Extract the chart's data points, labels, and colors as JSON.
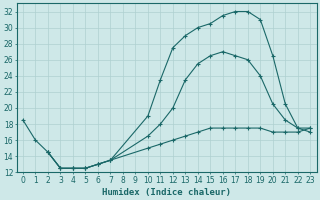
{
  "xlabel": "Humidex (Indice chaleur)",
  "bg_color": "#cee8e8",
  "grid_color": "#afd0d0",
  "line_color": "#1a6868",
  "xlim": [
    -0.5,
    23.5
  ],
  "ylim": [
    12,
    33
  ],
  "xticks": [
    0,
    1,
    2,
    3,
    4,
    5,
    6,
    7,
    8,
    9,
    10,
    11,
    12,
    13,
    14,
    15,
    16,
    17,
    18,
    19,
    20,
    21,
    22,
    23
  ],
  "yticks": [
    12,
    14,
    16,
    18,
    20,
    22,
    24,
    26,
    28,
    30,
    32
  ],
  "curve1_x": [
    0,
    1,
    2,
    3,
    4,
    5,
    6,
    7,
    10,
    11,
    12,
    13,
    14,
    15,
    16,
    17,
    18,
    19,
    20,
    21,
    22,
    23
  ],
  "curve1_y": [
    18.5,
    16.0,
    14.5,
    12.5,
    12.5,
    12.5,
    13.0,
    13.5,
    19.0,
    23.5,
    27.5,
    29.0,
    30.0,
    30.5,
    31.5,
    32.0,
    32.0,
    31.0,
    26.5,
    20.5,
    17.5,
    17.0
  ],
  "curve2_x": [
    2,
    3,
    4,
    5,
    6,
    7,
    10,
    11,
    12,
    13,
    14,
    15,
    16,
    17,
    18,
    19,
    20,
    21,
    22,
    23
  ],
  "curve2_y": [
    14.5,
    12.5,
    12.5,
    12.5,
    13.0,
    13.5,
    16.5,
    18.0,
    20.0,
    23.5,
    25.5,
    26.5,
    27.0,
    26.5,
    26.0,
    24.0,
    20.5,
    18.5,
    17.5,
    17.5
  ],
  "curve3_x": [
    2,
    3,
    4,
    5,
    6,
    7,
    10,
    11,
    12,
    13,
    14,
    15,
    16,
    17,
    18,
    19,
    20,
    21,
    22,
    23
  ],
  "curve3_y": [
    14.5,
    12.5,
    12.5,
    12.5,
    13.0,
    13.5,
    15.0,
    15.5,
    16.0,
    16.5,
    17.0,
    17.5,
    17.5,
    17.5,
    17.5,
    17.5,
    17.0,
    17.0,
    17.0,
    17.5
  ]
}
